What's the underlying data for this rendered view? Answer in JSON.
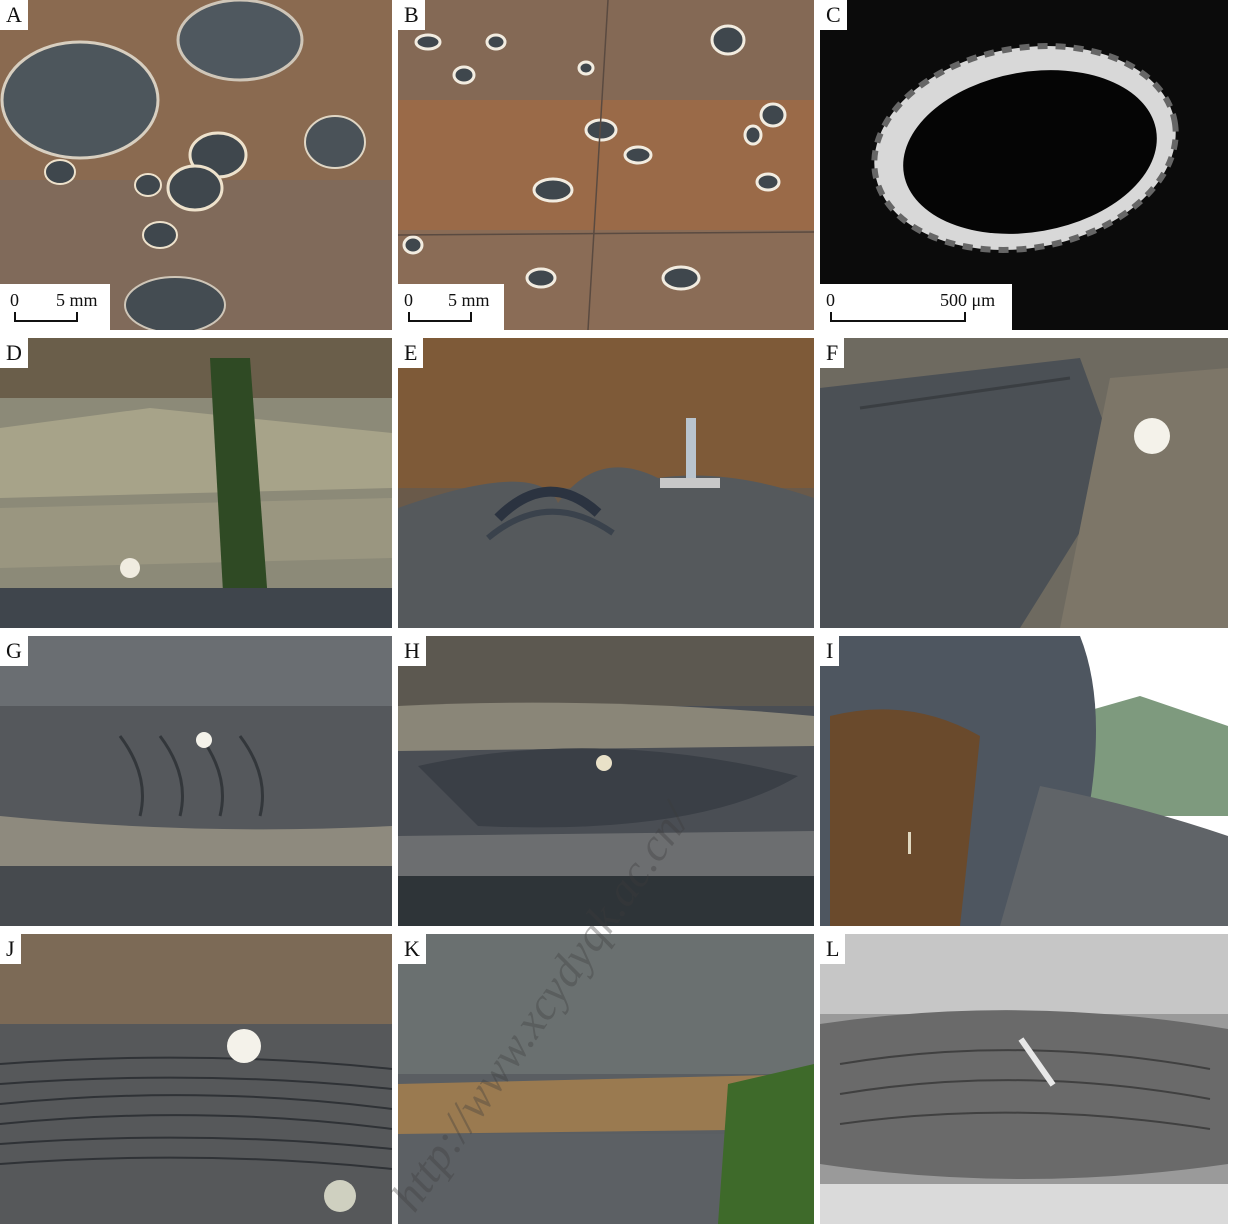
{
  "panels": [
    {
      "label": "A",
      "scale": {
        "start": "0",
        "end": "5 mm"
      }
    },
    {
      "label": "B",
      "scale": {
        "start": "0",
        "end": "5 mm"
      }
    },
    {
      "label": "C",
      "scale": {
        "start": "0",
        "end": "500 μm"
      }
    },
    {
      "label": "D"
    },
    {
      "label": "E"
    },
    {
      "label": "F"
    },
    {
      "label": "G"
    },
    {
      "label": "H"
    },
    {
      "label": "I"
    },
    {
      "label": "J"
    },
    {
      "label": "K"
    },
    {
      "label": "L"
    }
  ],
  "watermark": {
    "text": "http://www.xcydyqk.ac.cn/"
  },
  "colors": {
    "rock_dark": "#4a5058",
    "rust": "#a8683a",
    "grey": "#6b6f74"
  }
}
